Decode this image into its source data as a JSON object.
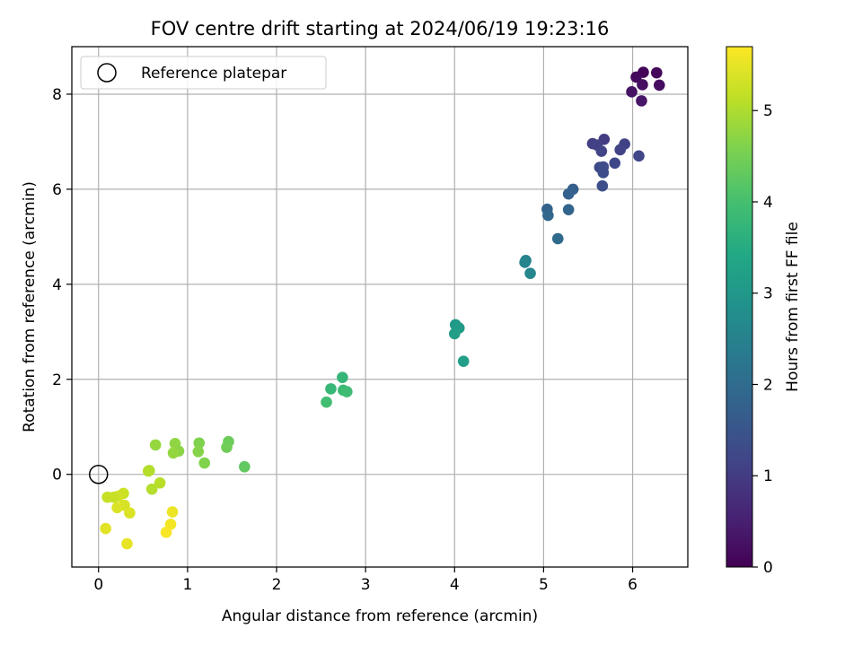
{
  "chart_data": {
    "type": "scatter",
    "title": "FOV centre drift starting at 2024/06/19 19:23:16",
    "xlabel": "Angular distance from reference (arcmin)",
    "ylabel": "Rotation from reference (arcmin)",
    "xlim": [
      -0.3,
      6.62
    ],
    "ylim": [
      -1.95,
      9.0
    ],
    "xticks": [
      "0",
      "1",
      "2",
      "3",
      "4",
      "5",
      "6"
    ],
    "yticks": [
      "0",
      "2",
      "4",
      "6",
      "8"
    ],
    "grid": true,
    "legend": {
      "position": "top-left",
      "label": "Reference platepar"
    },
    "reference_point": {
      "x": 0,
      "y": 0
    },
    "colorbar": {
      "label": "Hours from first FF file",
      "range": [
        0,
        5.7
      ],
      "ticks": [
        "0",
        "1",
        "2",
        "3",
        "4",
        "5"
      ],
      "colormap": "viridis"
    },
    "points": [
      {
        "x": 6.12,
        "y": 8.46,
        "c": 0.05
      },
      {
        "x": 6.27,
        "y": 8.45,
        "c": 0.1
      },
      {
        "x": 6.04,
        "y": 8.36,
        "c": 0.15
      },
      {
        "x": 6.3,
        "y": 8.19,
        "c": 0.2
      },
      {
        "x": 6.11,
        "y": 8.2,
        "c": 0.25
      },
      {
        "x": 5.99,
        "y": 8.05,
        "c": 0.3
      },
      {
        "x": 6.1,
        "y": 7.86,
        "c": 0.35
      },
      {
        "x": 5.68,
        "y": 7.05,
        "c": 1.0
      },
      {
        "x": 5.55,
        "y": 6.96,
        "c": 1.05
      },
      {
        "x": 5.6,
        "y": 6.93,
        "c": 1.08
      },
      {
        "x": 5.91,
        "y": 6.95,
        "c": 1.1
      },
      {
        "x": 5.86,
        "y": 6.83,
        "c": 1.12
      },
      {
        "x": 5.65,
        "y": 6.8,
        "c": 1.15
      },
      {
        "x": 6.07,
        "y": 6.7,
        "c": 1.18
      },
      {
        "x": 5.8,
        "y": 6.55,
        "c": 1.2
      },
      {
        "x": 5.63,
        "y": 6.46,
        "c": 1.25
      },
      {
        "x": 5.67,
        "y": 6.47,
        "c": 1.3
      },
      {
        "x": 5.67,
        "y": 6.35,
        "c": 1.32
      },
      {
        "x": 5.66,
        "y": 6.07,
        "c": 1.35
      },
      {
        "x": 5.33,
        "y": 6.0,
        "c": 1.7
      },
      {
        "x": 5.28,
        "y": 5.9,
        "c": 1.75
      },
      {
        "x": 5.04,
        "y": 5.58,
        "c": 1.8
      },
      {
        "x": 5.28,
        "y": 5.57,
        "c": 1.85
      },
      {
        "x": 5.05,
        "y": 5.45,
        "c": 1.9
      },
      {
        "x": 5.16,
        "y": 4.96,
        "c": 1.95
      },
      {
        "x": 4.8,
        "y": 4.5,
        "c": 2.5
      },
      {
        "x": 4.79,
        "y": 4.46,
        "c": 2.55
      },
      {
        "x": 4.85,
        "y": 4.23,
        "c": 2.6
      },
      {
        "x": 4.01,
        "y": 3.15,
        "c": 3.05
      },
      {
        "x": 4.05,
        "y": 3.08,
        "c": 3.1
      },
      {
        "x": 4.0,
        "y": 2.96,
        "c": 3.15
      },
      {
        "x": 4.1,
        "y": 2.38,
        "c": 3.2
      },
      {
        "x": 2.74,
        "y": 2.04,
        "c": 3.75
      },
      {
        "x": 2.61,
        "y": 1.8,
        "c": 3.8
      },
      {
        "x": 2.75,
        "y": 1.77,
        "c": 3.85
      },
      {
        "x": 2.79,
        "y": 1.74,
        "c": 3.9
      },
      {
        "x": 2.56,
        "y": 1.52,
        "c": 3.95
      },
      {
        "x": 1.46,
        "y": 0.69,
        "c": 4.4
      },
      {
        "x": 1.44,
        "y": 0.57,
        "c": 4.45
      },
      {
        "x": 1.64,
        "y": 0.16,
        "c": 4.3
      },
      {
        "x": 1.13,
        "y": 0.66,
        "c": 4.6
      },
      {
        "x": 1.12,
        "y": 0.48,
        "c": 4.65
      },
      {
        "x": 1.19,
        "y": 0.24,
        "c": 4.62
      },
      {
        "x": 0.86,
        "y": 0.65,
        "c": 4.75
      },
      {
        "x": 0.64,
        "y": 0.62,
        "c": 4.8
      },
      {
        "x": 0.9,
        "y": 0.49,
        "c": 4.7
      },
      {
        "x": 0.84,
        "y": 0.45,
        "c": 4.78
      },
      {
        "x": 0.57,
        "y": 0.08,
        "c": 5.0
      },
      {
        "x": 0.56,
        "y": 0.07,
        "c": 5.05
      },
      {
        "x": 0.69,
        "y": -0.18,
        "c": 5.1
      },
      {
        "x": 0.6,
        "y": -0.31,
        "c": 5.05
      },
      {
        "x": 0.28,
        "y": -0.4,
        "c": 5.25
      },
      {
        "x": 0.1,
        "y": -0.48,
        "c": 5.2
      },
      {
        "x": 0.22,
        "y": -0.46,
        "c": 5.3
      },
      {
        "x": 0.17,
        "y": -0.48,
        "c": 5.22
      },
      {
        "x": 0.29,
        "y": -0.65,
        "c": 5.35
      },
      {
        "x": 0.21,
        "y": -0.7,
        "c": 5.4
      },
      {
        "x": 0.35,
        "y": -0.81,
        "c": 5.4
      },
      {
        "x": 0.83,
        "y": -0.79,
        "c": 5.55
      },
      {
        "x": 0.81,
        "y": -1.05,
        "c": 5.6
      },
      {
        "x": 0.08,
        "y": -1.14,
        "c": 5.45
      },
      {
        "x": 0.76,
        "y": -1.22,
        "c": 5.65
      },
      {
        "x": 0.32,
        "y": -1.46,
        "c": 5.5
      }
    ]
  }
}
